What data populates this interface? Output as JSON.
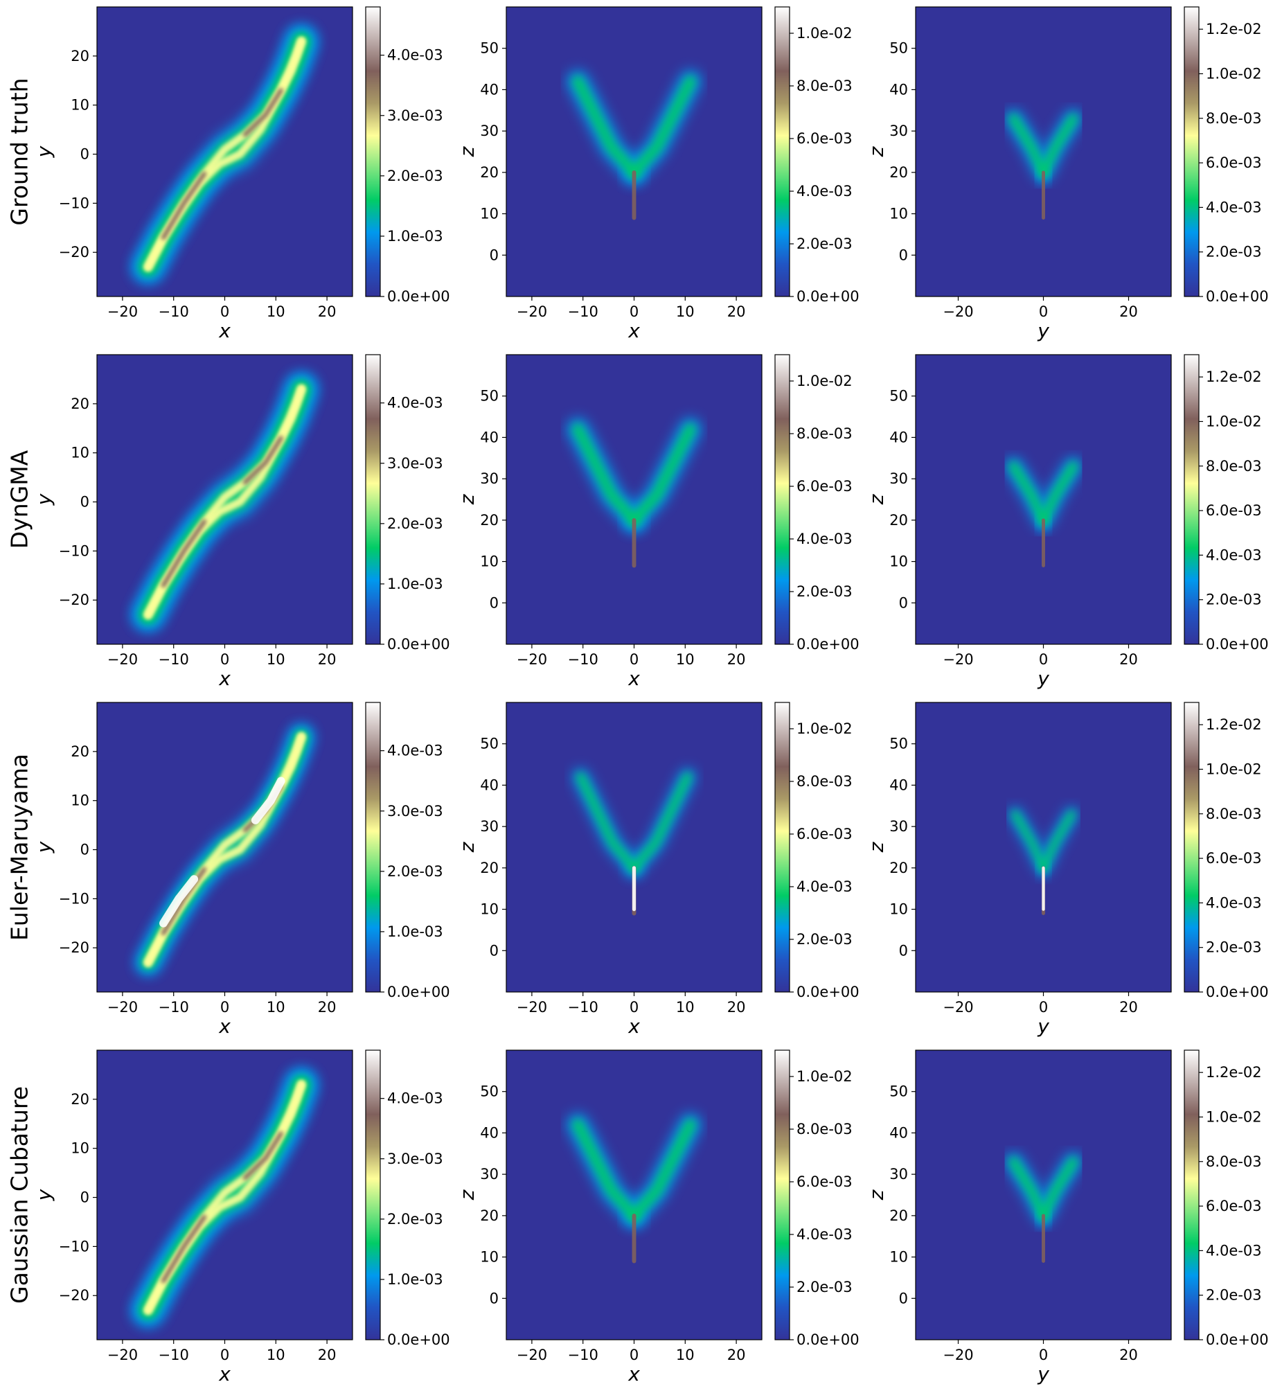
{
  "colors": {
    "background": "#333399",
    "colormap": [
      "#333399",
      "#2155c4",
      "#0099ee",
      "#01cc66",
      "#80e680",
      "#ffff99",
      "#aa9a66",
      "#80605c",
      "#c0b0ae",
      "#ffffff"
    ]
  },
  "rows": [
    {
      "label": "Ground truth"
    },
    {
      "label": "DynGMA"
    },
    {
      "label": "Euler-Maruyama"
    },
    {
      "label": "Gaussian Cubature"
    }
  ],
  "chart_data": [
    {
      "type": "heatmap",
      "panel": "xy",
      "title": "",
      "xlabel": "x",
      "ylabel": "y",
      "xlim": [
        -25,
        25
      ],
      "ylim": [
        -29,
        30
      ],
      "xticks": [
        -20,
        -10,
        0,
        10,
        20
      ],
      "yticks": [
        -20,
        -10,
        0,
        10,
        20
      ],
      "colorbar": {
        "range": [
          0,
          0.0048
        ],
        "ticks": [
          "0.0e+00",
          "1.0e-03",
          "2.0e-03",
          "3.0e-03",
          "4.0e-03"
        ]
      }
    },
    {
      "type": "heatmap",
      "panel": "xz",
      "title": "",
      "xlabel": "x",
      "ylabel": "z",
      "xlim": [
        -25,
        25
      ],
      "ylim": [
        -10,
        60
      ],
      "xticks": [
        -20,
        -10,
        0,
        10,
        20
      ],
      "yticks": [
        0,
        10,
        20,
        30,
        40,
        50
      ],
      "colorbar": {
        "range": [
          0,
          0.011
        ],
        "ticks": [
          "0.0e+00",
          "2.0e-03",
          "4.0e-03",
          "6.0e-03",
          "8.0e-03",
          "1.0e-02"
        ]
      }
    },
    {
      "type": "heatmap",
      "panel": "yz",
      "title": "",
      "xlabel": "y",
      "ylabel": "z",
      "xlim": [
        -30,
        30
      ],
      "ylim": [
        -10,
        60
      ],
      "xticks": [
        -20,
        0,
        20
      ],
      "yticks": [
        0,
        10,
        20,
        30,
        40,
        50
      ],
      "colorbar": {
        "range": [
          0,
          0.013
        ],
        "ticks": [
          "0.0e+00",
          "2.0e-03",
          "4.0e-03",
          "6.0e-03",
          "8.0e-03",
          "1.0e-02",
          "1.2e-02"
        ]
      }
    }
  ]
}
